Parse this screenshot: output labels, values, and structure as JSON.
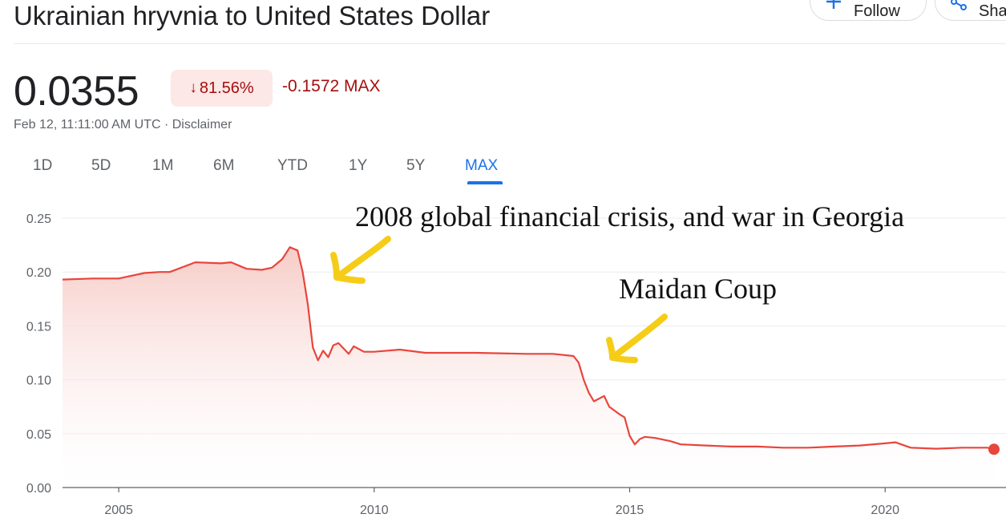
{
  "header": {
    "title": "Ukrainian hryvnia to United States Dollar",
    "follow_label": "Follow",
    "share_label": "Shar"
  },
  "quote": {
    "price": "0.0355",
    "pct_change": "81.56%",
    "abs_change": "-0.1572 MAX",
    "timestamp": "Feb 12, 11:11:00 AM UTC · Disclaimer",
    "trend": "down"
  },
  "tabs": [
    {
      "label": "1D"
    },
    {
      "label": "5D"
    },
    {
      "label": "1M"
    },
    {
      "label": "6M"
    },
    {
      "label": "YTD"
    },
    {
      "label": "1Y"
    },
    {
      "label": "5Y"
    },
    {
      "label": "MAX",
      "active": true
    }
  ],
  "annotations": [
    {
      "text": "2008 global financial crisis, and war in Georgia"
    },
    {
      "text": "Maidan Coup"
    }
  ],
  "colors": {
    "line": "#e8453c",
    "fill_top": "#f6c9c4",
    "down_text": "#a50e0e",
    "badge_bg": "#fce8e6",
    "accent": "#1a73e8",
    "arrow": "#f5cd19"
  },
  "chart_data": {
    "type": "area",
    "title": "",
    "xlabel": "",
    "ylabel": "",
    "ylim": [
      0,
      0.25
    ],
    "xlim": [
      2003.9,
      2022.13
    ],
    "y_ticks": [
      0.0,
      0.05,
      0.1,
      0.15,
      0.2,
      0.25
    ],
    "y_tick_labels": [
      "0.00",
      "0.05",
      "0.10",
      "0.15",
      "0.20",
      "0.25"
    ],
    "x_ticks": [
      2005,
      2010,
      2015,
      2020
    ],
    "x_tick_labels": [
      "2005",
      "2010",
      "2015",
      "2020"
    ],
    "grid": "horizontal",
    "series": [
      {
        "x": [
          2003.9,
          2004.5,
          2005.0,
          2005.5,
          2005.8,
          2006.0,
          2006.5,
          2007.0,
          2007.2,
          2007.5,
          2007.8,
          2008.0,
          2008.2,
          2008.35,
          2008.5,
          2008.6,
          2008.7,
          2008.8,
          2008.9,
          2009.0,
          2009.1,
          2009.2,
          2009.3,
          2009.5,
          2009.6,
          2009.8,
          2010.0,
          2010.5,
          2011.0,
          2012.0,
          2013.0,
          2013.5,
          2013.9,
          2014.0,
          2014.1,
          2014.2,
          2014.3,
          2014.5,
          2014.6,
          2014.8,
          2014.9,
          2015.0,
          2015.1,
          2015.2,
          2015.3,
          2015.5,
          2015.8,
          2016.0,
          2016.5,
          2017.0,
          2017.5,
          2018.0,
          2018.5,
          2019.0,
          2019.5,
          2020.0,
          2020.2,
          2020.5,
          2021.0,
          2021.5,
          2022.0,
          2022.13
        ],
        "values": [
          0.193,
          0.194,
          0.194,
          0.199,
          0.2,
          0.2,
          0.209,
          0.208,
          0.209,
          0.203,
          0.202,
          0.204,
          0.212,
          0.223,
          0.22,
          0.2,
          0.17,
          0.13,
          0.118,
          0.127,
          0.121,
          0.132,
          0.134,
          0.124,
          0.131,
          0.126,
          0.126,
          0.128,
          0.125,
          0.125,
          0.124,
          0.124,
          0.122,
          0.116,
          0.1,
          0.088,
          0.08,
          0.085,
          0.075,
          0.068,
          0.065,
          0.048,
          0.04,
          0.045,
          0.047,
          0.046,
          0.043,
          0.04,
          0.039,
          0.038,
          0.038,
          0.037,
          0.037,
          0.038,
          0.039,
          0.041,
          0.042,
          0.037,
          0.036,
          0.037,
          0.037,
          0.0355
        ]
      }
    ]
  }
}
